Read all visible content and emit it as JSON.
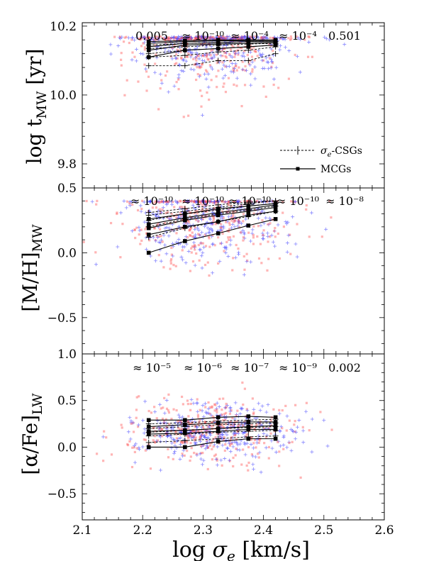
{
  "chart_data": {
    "type": "scatter",
    "shared_x": {
      "label": "log σe [km/s]",
      "xlim": [
        2.1,
        2.6
      ],
      "ticks": [
        "2.1",
        "2.2",
        "2.3",
        "2.4",
        "2.5",
        "2.6"
      ]
    },
    "bin_centers": [
      2.21,
      2.27,
      2.325,
      2.375,
      2.42
    ],
    "legend": {
      "placement": "lower-right of top panel",
      "entries": [
        "σe-CSGs",
        "MCGs"
      ]
    },
    "colors": {
      "csg_points": "#3a3aff",
      "mcg_points": "#ff5a5a",
      "lines": "#000000"
    },
    "panels": [
      {
        "id": "age",
        "ylabel": "log tMW [yr]",
        "ylim": [
          9.73,
          10.21
        ],
        "yticks": [
          9.8,
          10.0,
          10.2
        ],
        "ytick_labels": [
          "9.8",
          "10.0",
          "10.2"
        ],
        "scatter_center": 10.15,
        "scatter_spread": 0.06,
        "scatter_cap": 10.17,
        "pvalues": [
          "0.005",
          "≈ 10⁻¹⁰",
          "≈ 10⁻⁴",
          "≈ 10⁻⁴",
          "0.501"
        ],
        "mcg_lines": [
          [
            10.11,
            10.13,
            10.135,
            10.14,
            10.145
          ],
          [
            10.13,
            10.145,
            10.148,
            10.15,
            10.152
          ],
          [
            10.14,
            10.15,
            10.152,
            10.155,
            10.155
          ],
          [
            10.15,
            10.155,
            10.157,
            10.158,
            10.158
          ],
          [
            10.155,
            10.158,
            10.16,
            10.16,
            10.16
          ]
        ],
        "csg_lines": [
          [
            10.085,
            10.085,
            10.1,
            10.1,
            10.12
          ],
          [
            10.11,
            10.115,
            10.125,
            10.13,
            10.14
          ],
          [
            10.12,
            10.13,
            10.135,
            10.14,
            10.145
          ],
          [
            10.135,
            10.14,
            10.145,
            10.148,
            10.15
          ],
          [
            10.145,
            10.15,
            10.152,
            10.155,
            10.155
          ]
        ]
      },
      {
        "id": "metallicity",
        "ylabel": "[M/H]MW",
        "ylim": [
          -0.78,
          0.5
        ],
        "yticks": [
          -0.5,
          0.0,
          0.5
        ],
        "ytick_labels": [
          "−0.5",
          "0.0",
          "0.5"
        ],
        "scatter_center": 0.25,
        "scatter_spread": 0.15,
        "scatter_cap": 0.4,
        "pvalues": [
          "≈ 10⁻¹⁰",
          "≈ 10⁻¹⁰",
          "≈ 10⁻¹⁰",
          "≈ 10⁻¹⁰",
          "≈ 10⁻⁸"
        ],
        "mcg_lines": [
          [
            0.0,
            0.09,
            0.15,
            0.21,
            0.26
          ],
          [
            0.14,
            0.2,
            0.24,
            0.29,
            0.32
          ],
          [
            0.19,
            0.25,
            0.29,
            0.32,
            0.35
          ],
          [
            0.22,
            0.27,
            0.31,
            0.34,
            0.37
          ],
          [
            0.26,
            0.3,
            0.34,
            0.36,
            0.38
          ]
        ],
        "csg_lines": [
          [
            0.12,
            0.19,
            0.24,
            0.28,
            0.32
          ],
          [
            0.2,
            0.26,
            0.3,
            0.33,
            0.36
          ],
          [
            0.25,
            0.3,
            0.33,
            0.36,
            0.38
          ],
          [
            0.29,
            0.32,
            0.35,
            0.38,
            0.4
          ],
          [
            0.31,
            0.34,
            0.37,
            0.39,
            0.4
          ]
        ]
      },
      {
        "id": "alpha",
        "ylabel": "[α/Fe]LW",
        "ylim": [
          -0.78,
          1.0
        ],
        "yticks": [
          -0.5,
          0.0,
          0.5,
          1.0
        ],
        "ytick_labels": [
          "−0.5",
          "0.0",
          "0.5",
          "1.0"
        ],
        "scatter_center": 0.17,
        "scatter_spread": 0.15,
        "scatter_cap": 0.7,
        "pvalues": [
          "≈ 10⁻⁵",
          "≈ 10⁻⁶",
          "≈ 10⁻⁷",
          "≈ 10⁻⁹",
          "0.002"
        ],
        "mcg_lines": [
          [
            0.0,
            0.0,
            0.06,
            0.09,
            0.09
          ],
          [
            0.14,
            0.15,
            0.17,
            0.19,
            0.19
          ],
          [
            0.17,
            0.18,
            0.2,
            0.22,
            0.23
          ],
          [
            0.22,
            0.24,
            0.26,
            0.27,
            0.27
          ],
          [
            0.29,
            0.29,
            0.32,
            0.33,
            0.32
          ]
        ],
        "csg_lines": [
          [
            0.05,
            0.07,
            0.09,
            0.11,
            0.12
          ],
          [
            0.12,
            0.14,
            0.16,
            0.17,
            0.18
          ],
          [
            0.16,
            0.18,
            0.2,
            0.21,
            0.22
          ],
          [
            0.2,
            0.22,
            0.24,
            0.25,
            0.26
          ],
          [
            0.25,
            0.26,
            0.28,
            0.29,
            0.3
          ]
        ]
      }
    ]
  }
}
